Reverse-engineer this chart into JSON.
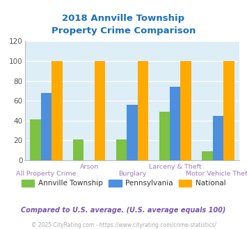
{
  "title": "2018 Annville Township\nProperty Crime Comparison",
  "categories": [
    "All Property Crime",
    "Arson",
    "Burglary",
    "Larceny & Theft",
    "Motor Vehicle Theft"
  ],
  "annville": [
    41,
    21,
    21,
    49,
    9
  ],
  "pennsylvania": [
    68,
    0,
    56,
    74,
    45
  ],
  "national": [
    100,
    100,
    100,
    100,
    100
  ],
  "color_annville": "#7dc242",
  "color_pennsylvania": "#4b8fde",
  "color_national": "#ffaa00",
  "ylim": [
    0,
    120
  ],
  "yticks": [
    0,
    20,
    40,
    60,
    80,
    100,
    120
  ],
  "bg_color": "#ddeef7",
  "title_color": "#1a6fba",
  "xlabel_color": "#9b7ebd",
  "footer_text": "Compared to U.S. average. (U.S. average equals 100)",
  "copyright_text": "© 2025 CityRating.com - https://www.cityrating.com/crime-statistics/",
  "legend_labels": [
    "Annville Township",
    "Pennsylvania",
    "National"
  ],
  "bar_width": 0.25
}
